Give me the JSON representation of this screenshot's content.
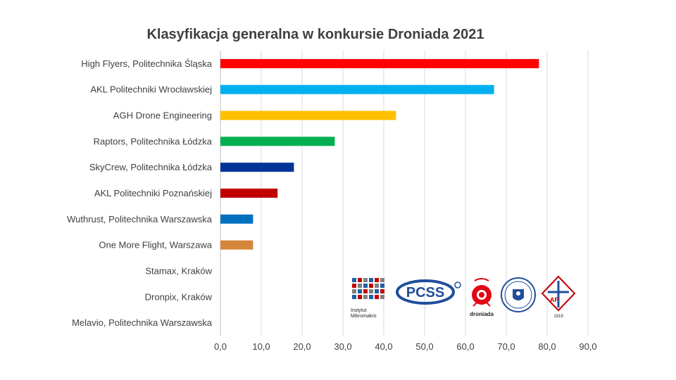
{
  "chart_data": {
    "type": "bar",
    "orientation": "horizontal",
    "title": "Klasyfikacja generalna w konkursie Droniada 2021",
    "xlabel": "",
    "ylabel": "",
    "xlim": [
      0,
      90
    ],
    "x_ticks": [
      "0,0",
      "10,0",
      "20,0",
      "30,0",
      "40,0",
      "50,0",
      "60,0",
      "70,0",
      "80,0",
      "90,0"
    ],
    "grid": "vertical",
    "legend": "none",
    "categories": [
      "High Flyers, Politechnika Śląska",
      "AKL Politechniki Wrocławskiej",
      "AGH Drone Engineering",
      "Raptors, Politechnika Łódzka",
      "SkyCrew, Politechnika Łódzka",
      "AKL Politechniki Poznańskiej",
      "Wuthrust, Politechnika Warszawska",
      "One More Flight, Warszawa",
      "Stamax, Kraków",
      "Dronpix, Kraków",
      "Melavio, Politechnika Warszawska"
    ],
    "values": [
      78,
      67,
      43,
      28,
      18,
      14,
      8,
      8,
      0,
      0,
      0
    ],
    "colors": [
      "#ff0000",
      "#00b0f0",
      "#ffc000",
      "#00b050",
      "#003399",
      "#c00000",
      "#0070c0",
      "#d6863a",
      "#ffffff",
      "#ffffff",
      "#ffffff"
    ]
  },
  "logos": {
    "mikromakro_text": [
      "Instytut",
      "Mikromakro"
    ],
    "pcss_text": "PCSS",
    "droniada_text": "droniada",
    "ap_text": "AP",
    "ap_year": "1919",
    "mikromakro_colors": [
      "#1f5fa6",
      "#c00000",
      "#808080"
    ]
  }
}
